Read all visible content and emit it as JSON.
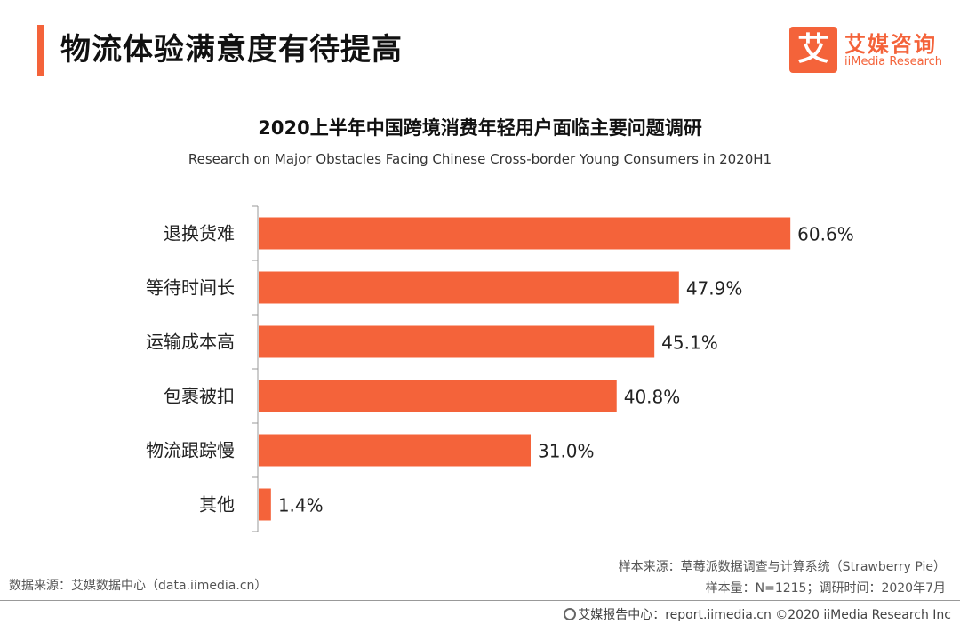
{
  "header": {
    "title": "物流体验满意度有待提高"
  },
  "logo": {
    "mark": "艾",
    "name_cn": "艾媒咨询",
    "name_en": "iiMedia Research"
  },
  "chart_data": {
    "type": "bar",
    "orientation": "horizontal",
    "title": "2020上半年中国跨境消费年轻用户面临主要问题调研",
    "subtitle": "Research on Major Obstacles Facing Chinese Cross-border Young Consumers in 2020H1",
    "categories": [
      "退换货难",
      "等待时间长",
      "运输成本高",
      "包裹被扣",
      "物流跟踪慢",
      "其他"
    ],
    "values": [
      60.6,
      47.9,
      45.1,
      40.8,
      31.0,
      1.4
    ],
    "value_labels": [
      "60.6%",
      "47.9%",
      "45.1%",
      "40.8%",
      "31.0%",
      "1.4%"
    ],
    "unit": "%",
    "xlim": [
      0,
      62
    ],
    "bar_color": "#f4633a",
    "grid": false,
    "legend": "none"
  },
  "sources": {
    "left": "数据来源：艾媒数据中心（data.iimedia.cn）",
    "right_line1": "样本来源：草莓派数据调查与计算系统（Strawberry Pie）",
    "right_line2": "样本量：N=1215；调研时间：2020年7月"
  },
  "footer": {
    "text": "艾媒报告中心：report.iimedia.cn  ©2020  iiMedia Research  Inc"
  }
}
